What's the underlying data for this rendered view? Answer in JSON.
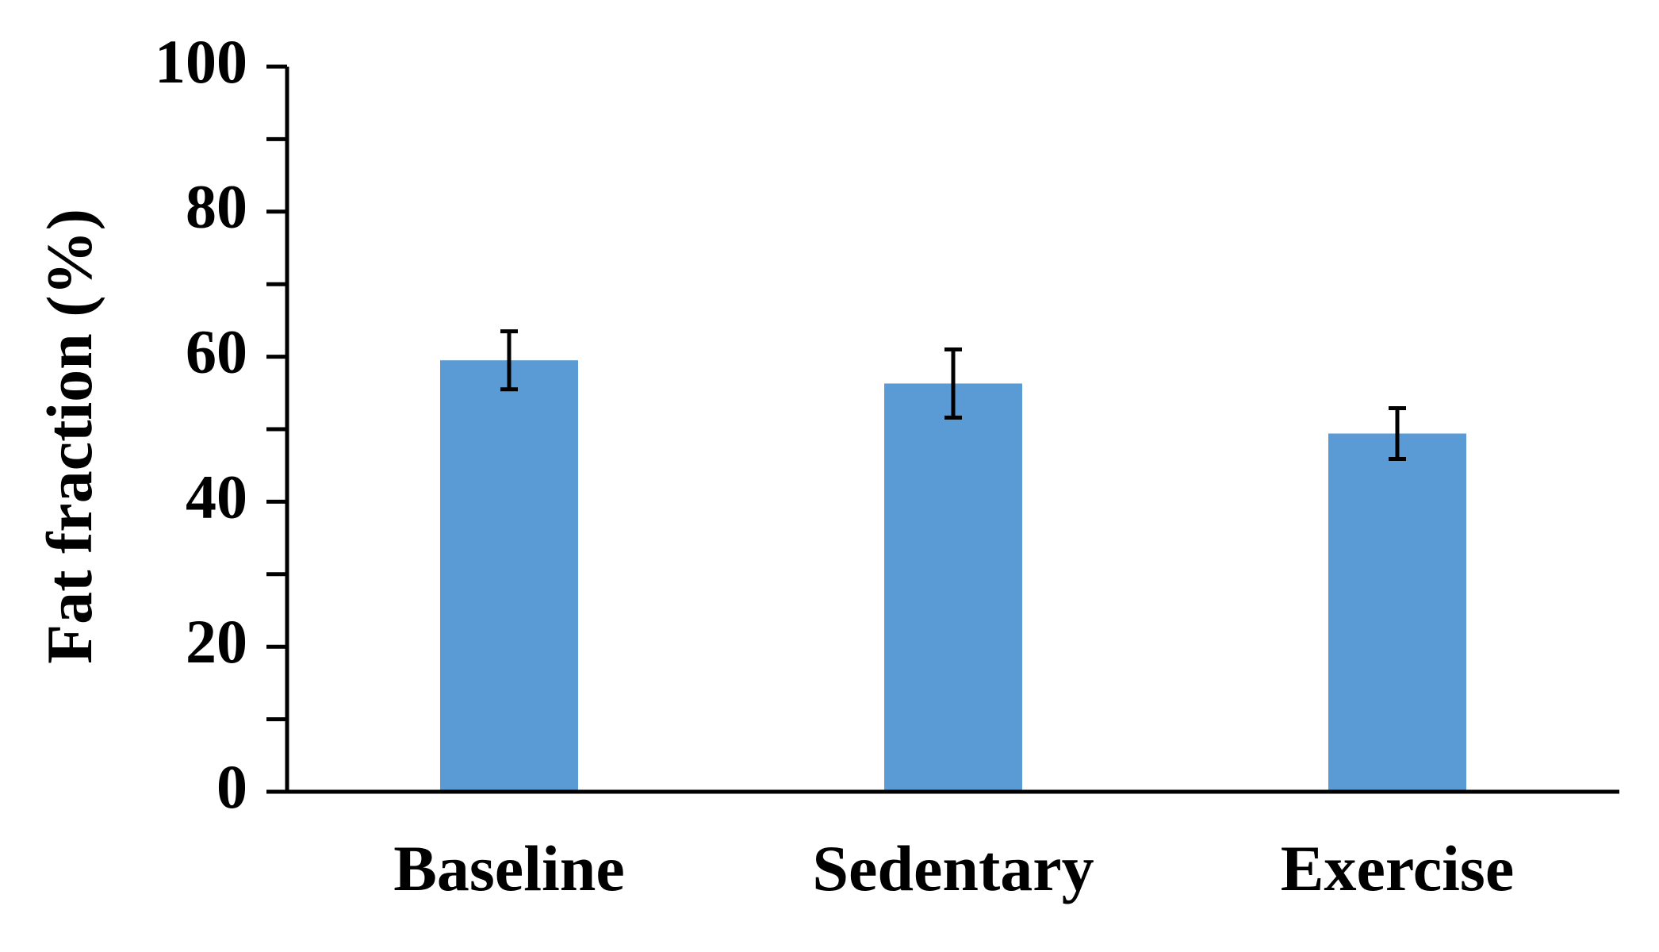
{
  "chart_data": {
    "type": "bar",
    "title": "",
    "xlabel": "",
    "ylabel": "Fat fraction (%)",
    "categories": [
      "Baseline",
      "Sedentary",
      "Exercise"
    ],
    "values": [
      59.5,
      56.3,
      49.4
    ],
    "error": [
      4.0,
      4.7,
      3.5
    ],
    "ylim": [
      0,
      100
    ],
    "yticks": [
      0,
      20,
      40,
      60,
      80,
      100
    ],
    "ytick_labels": [
      "0",
      "20",
      "40",
      "60",
      "80",
      "100"
    ],
    "minor_tick_step": 10,
    "grid": false,
    "legend": "none",
    "bar_color": "#5b9bd5",
    "axis_color": "#000000"
  }
}
